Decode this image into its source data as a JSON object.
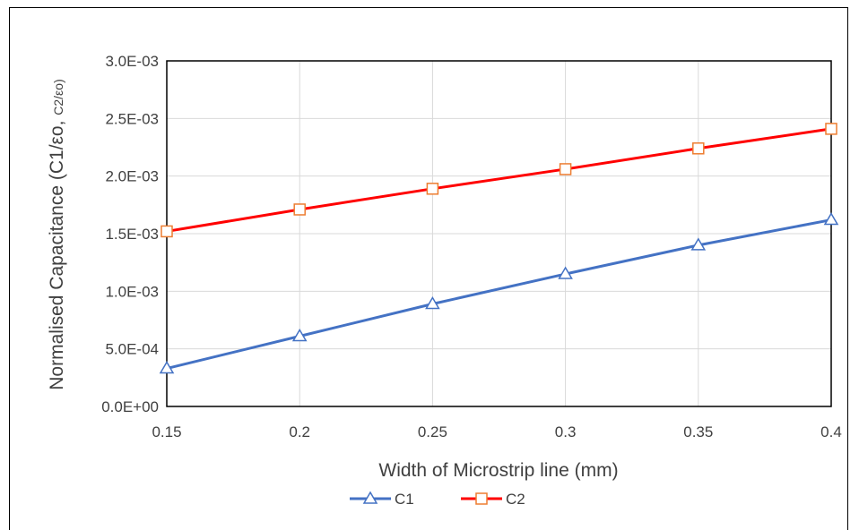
{
  "chart_data": {
    "type": "line",
    "xlabel": "Width of Microstrip line (mm)",
    "ylabel_main": "Normalised Capacitance (C1/εo, ",
    "ylabel_small": "C2/εo)",
    "x": [
      0.15,
      0.2,
      0.25,
      0.3,
      0.35,
      0.4
    ],
    "x_tick_labels": [
      "0.15",
      "0.2",
      "0.25",
      "0.3",
      "0.35",
      "0.4"
    ],
    "y_tick_values": [
      0,
      0.0005,
      0.001,
      0.0015,
      0.002,
      0.0025,
      0.003
    ],
    "y_tick_labels": [
      "0.0E+00",
      "5.0E-04",
      "1.0E-03",
      "1.5E-03",
      "2.0E-03",
      "2.5E-03",
      "3.0E-03"
    ],
    "xlim": [
      0.15,
      0.4
    ],
    "ylim": [
      0,
      0.003
    ],
    "grid": true,
    "legend_position": "bottom",
    "series": [
      {
        "name": "C1",
        "color": "#4472c4",
        "marker": "triangle",
        "values": [
          0.00033,
          0.00061,
          0.00089,
          0.00115,
          0.0014,
          0.00162
        ]
      },
      {
        "name": "C2",
        "color": "#ff0000",
        "marker_color": "#ed7d31",
        "marker": "square",
        "values": [
          0.00152,
          0.00171,
          0.00189,
          0.00206,
          0.00224,
          0.00241
        ]
      }
    ]
  }
}
